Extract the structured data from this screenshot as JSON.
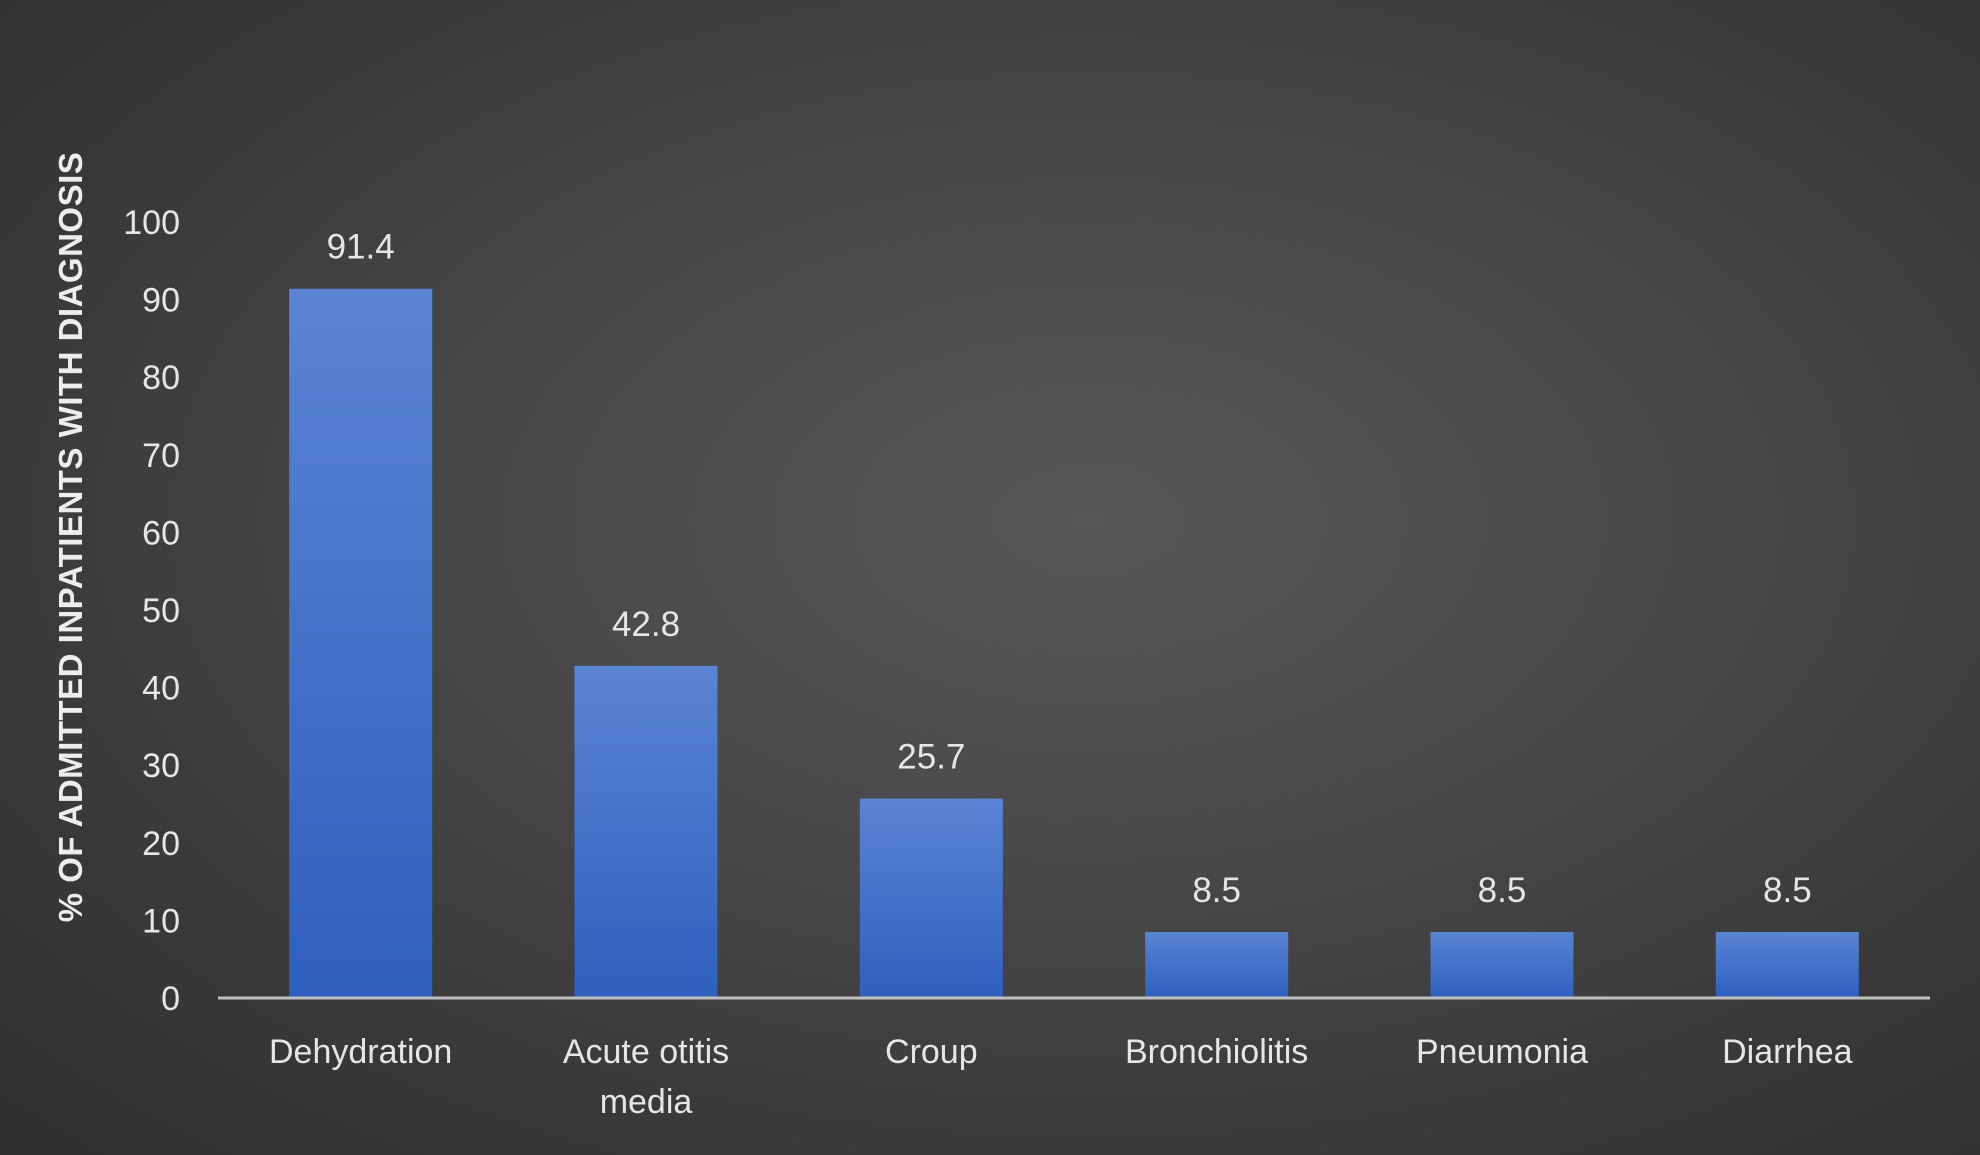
{
  "chart_data": {
    "type": "bar",
    "categories": [
      "Dehydration",
      "Acute otitis media",
      "Croup",
      "Bronchiolitis",
      "Pneumonia",
      "Diarrhea"
    ],
    "category_lines": [
      [
        "Dehydration"
      ],
      [
        "Acute otitis",
        "media"
      ],
      [
        "Croup"
      ],
      [
        "Bronchiolitis"
      ],
      [
        "Pneumonia"
      ],
      [
        "Diarrhea"
      ]
    ],
    "values": [
      91.4,
      42.8,
      25.7,
      8.5,
      8.5,
      8.5
    ],
    "data_labels": [
      "91.4",
      "42.8",
      "25.7",
      "8.5",
      "8.5",
      "8.5"
    ],
    "title": "",
    "xlabel": "",
    "ylabel": "% OF ADMITTED INPATIENTS WITH DIAGNOSIS",
    "ylim": [
      0,
      100
    ],
    "yticks": [
      0,
      10,
      20,
      30,
      40,
      50,
      60,
      70,
      80,
      90,
      100
    ],
    "grid": false,
    "legend": "none",
    "colors": {
      "bar_top": "#5a84d4",
      "bar_bottom": "#2f5fbe",
      "axis_line": "#bfbfbf",
      "text": "#e6e6e6"
    }
  }
}
